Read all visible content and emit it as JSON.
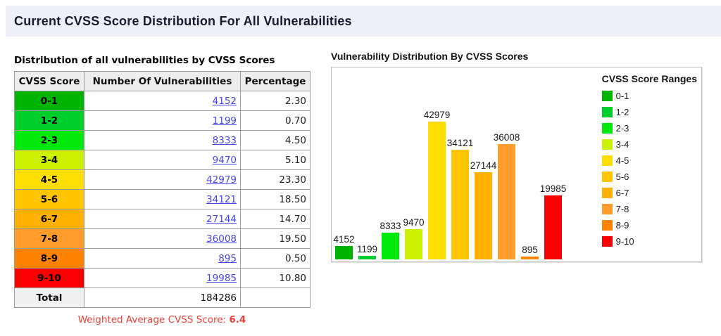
{
  "page": {
    "title": "Current CVSS Score Distribution For All Vulnerabilities"
  },
  "table": {
    "title": "Distribution of all vulnerabilities by CVSS Scores",
    "columns": [
      "CVSS Score",
      "Number Of Vulnerabilities",
      "Percentage"
    ],
    "rows": [
      {
        "score": "0-1",
        "count": "4152",
        "percentage": "2.30",
        "color": "#00B404"
      },
      {
        "score": "1-2",
        "count": "1199",
        "percentage": "0.70",
        "color": "#00CE2C"
      },
      {
        "score": "2-3",
        "count": "8333",
        "percentage": "4.50",
        "color": "#00E80C"
      },
      {
        "score": "3-4",
        "count": "9470",
        "percentage": "5.10",
        "color": "#CBF000"
      },
      {
        "score": "4-5",
        "count": "42979",
        "percentage": "23.30",
        "color": "#FFDF00"
      },
      {
        "score": "5-6",
        "count": "34121",
        "percentage": "18.50",
        "color": "#FFC500"
      },
      {
        "score": "6-7",
        "count": "27144",
        "percentage": "14.70",
        "color": "#FFB000"
      },
      {
        "score": "7-8",
        "count": "36008",
        "percentage": "19.50",
        "color": "#FF9C2C"
      },
      {
        "score": "8-9",
        "count": "895",
        "percentage": "0.50",
        "color": "#FF8300"
      },
      {
        "score": "9-10",
        "count": "19985",
        "percentage": "10.80",
        "color": "#FA0000"
      }
    ],
    "total_label": "Total",
    "total_count": "184286",
    "weighted_avg_label": "Weighted Average CVSS Score:",
    "weighted_avg_value": "6.4"
  },
  "chart_data": {
    "type": "bar",
    "title": "Vulnerability Distribution By CVSS Scores",
    "categories": [
      "0-1",
      "1-2",
      "2-3",
      "3-4",
      "4-5",
      "5-6",
      "6-7",
      "7-8",
      "8-9",
      "9-10"
    ],
    "values": [
      4152,
      1199,
      8333,
      9470,
      42979,
      34121,
      27144,
      36008,
      895,
      19985
    ],
    "bar_colors": [
      "#00B404",
      "#00CE2C",
      "#00E80C",
      "#CBF000",
      "#FFDF00",
      "#FFC500",
      "#FFB000",
      "#FF9C2C",
      "#FF8300",
      "#FA0000"
    ],
    "data_labels": true,
    "legend_title": "CVSS Score Ranges",
    "legend_position": "right",
    "grid": false,
    "xlabel": "",
    "ylabel": "",
    "ylim": [
      0,
      45000
    ]
  },
  "colors": {
    "header_band_bg": "#EFEFFA",
    "link": "#4545E5",
    "weighted_avg_text": "#EE4034",
    "table_border": "#9B9B9B",
    "header_cell_bg": "#EDEDED"
  }
}
